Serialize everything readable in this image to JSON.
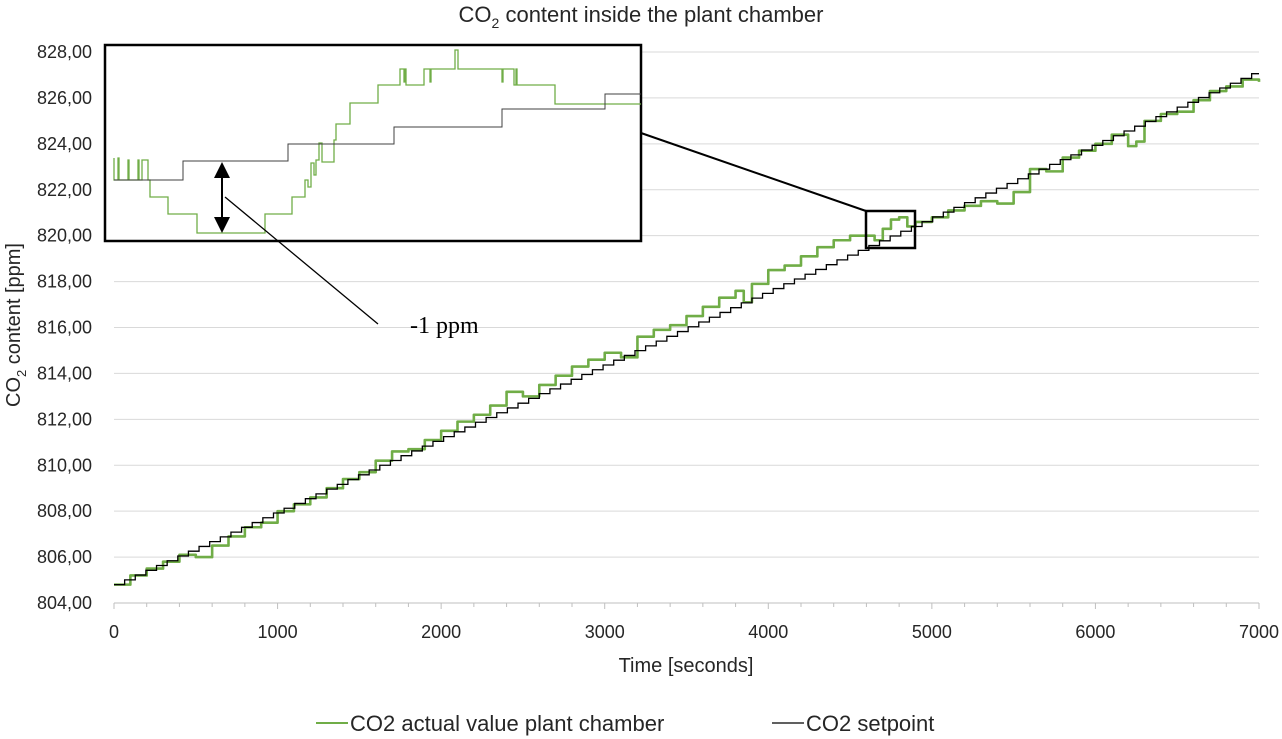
{
  "chart_data": {
    "type": "line",
    "title": "CO2 content inside the plant chamber",
    "title_parts": {
      "prefix": "CO",
      "sub": "2",
      "suffix": " content inside the plant chamber"
    },
    "xlabel": "Time [seconds]",
    "ylabel": "CO2 content [ppm]",
    "ylabel_parts": {
      "prefix": "CO",
      "sub": "2",
      "suffix": " content [ppm]"
    },
    "xlim": [
      0,
      7000
    ],
    "ylim": [
      804,
      828
    ],
    "x_ticks": [
      0,
      1000,
      2000,
      3000,
      4000,
      5000,
      6000,
      7000
    ],
    "x_tick_labels": [
      "0",
      "1000",
      "2000",
      "3000",
      "4000",
      "5000",
      "6000",
      "7000"
    ],
    "y_ticks": [
      804,
      806,
      808,
      810,
      812,
      814,
      816,
      818,
      820,
      822,
      824,
      826,
      828
    ],
    "y_tick_labels": [
      "804,00",
      "806,00",
      "808,00",
      "810,00",
      "812,00",
      "814,00",
      "816,00",
      "818,00",
      "820,00",
      "822,00",
      "824,00",
      "826,00",
      "828,00"
    ],
    "grid": "horizontal",
    "legend_placement": "bottom",
    "series": [
      {
        "name": "CO2 actual value plant chamber",
        "color": "#70ad47",
        "style": "step",
        "x": [
          0,
          100,
          200,
          300,
          400,
          500,
          600,
          700,
          800,
          900,
          1000,
          1100,
          1200,
          1300,
          1400,
          1500,
          1600,
          1700,
          1800,
          1900,
          2000,
          2100,
          2200,
          2300,
          2400,
          2500,
          2600,
          2700,
          2800,
          2900,
          3000,
          3100,
          3200,
          3300,
          3400,
          3500,
          3600,
          3700,
          3800,
          3850,
          3900,
          4000,
          4100,
          4200,
          4300,
          4400,
          4500,
          4600,
          4650,
          4700,
          4750,
          4800,
          4850,
          4900,
          5000,
          5100,
          5200,
          5300,
          5400,
          5500,
          5600,
          5700,
          5800,
          5900,
          6000,
          6100,
          6200,
          6250,
          6300,
          6400,
          6500,
          6600,
          6700,
          6800,
          6900,
          7000
        ],
        "y": [
          804.8,
          805.2,
          805.5,
          805.8,
          806.1,
          806.0,
          806.5,
          806.9,
          807.3,
          807.5,
          808.0,
          808.3,
          808.6,
          809.0,
          809.4,
          809.7,
          810.2,
          810.6,
          810.7,
          811.1,
          811.5,
          811.9,
          812.2,
          812.6,
          813.2,
          813.0,
          813.5,
          813.9,
          814.3,
          814.6,
          814.9,
          814.7,
          815.6,
          815.9,
          816.1,
          816.5,
          816.9,
          817.3,
          817.6,
          817.1,
          817.9,
          818.5,
          818.7,
          819.1,
          819.5,
          819.8,
          820.0,
          820.0,
          819.8,
          820.3,
          820.7,
          820.8,
          820.4,
          820.6,
          820.8,
          821.1,
          821.3,
          821.5,
          821.4,
          821.9,
          822.9,
          822.8,
          823.4,
          823.7,
          824.0,
          824.4,
          823.9,
          824.1,
          825.0,
          825.3,
          825.4,
          825.9,
          826.3,
          826.5,
          826.8,
          826.7
        ]
      },
      {
        "name": "CO2 setpoint",
        "color": "#000000",
        "style": "step",
        "x": [
          0,
          7000
        ],
        "y": [
          804.8,
          827.2
        ],
        "step_seconds": 65
      }
    ],
    "annotations": [
      {
        "text": "-1 ppm"
      }
    ]
  }
}
